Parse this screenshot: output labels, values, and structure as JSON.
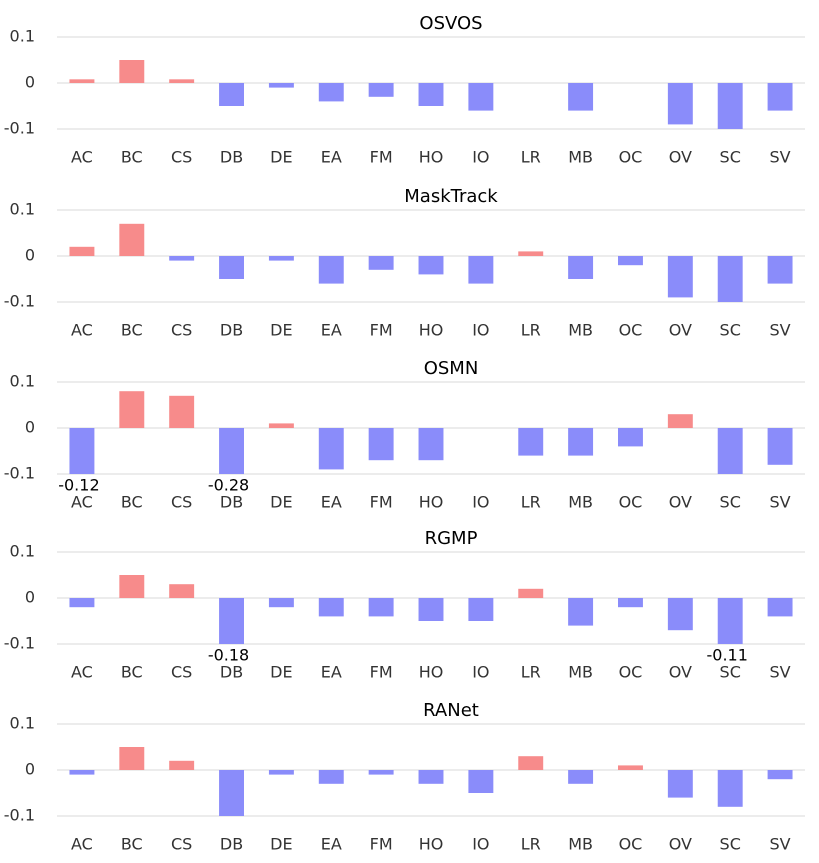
{
  "chart_data": [
    {
      "type": "bar",
      "title": "OSVOS",
      "categories": [
        "AC",
        "BC",
        "CS",
        "DB",
        "DE",
        "EA",
        "FM",
        "HO",
        "IO",
        "LR",
        "MB",
        "OC",
        "OV",
        "SC",
        "SV"
      ],
      "values": [
        0.008,
        0.05,
        0.008,
        -0.05,
        -0.01,
        -0.04,
        -0.03,
        -0.05,
        -0.06,
        0,
        -0.06,
        0,
        -0.09,
        -0.1,
        -0.06
      ],
      "positive_color": "#f78b8b",
      "negative_color": "#8a8cfa",
      "ylim": [
        -0.1,
        0.1
      ],
      "yticks": [
        -0.1,
        0,
        0.1
      ],
      "grid": true
    },
    {
      "type": "bar",
      "title": "MaskTrack",
      "categories": [
        "AC",
        "BC",
        "CS",
        "DB",
        "DE",
        "EA",
        "FM",
        "HO",
        "IO",
        "LR",
        "MB",
        "OC",
        "OV",
        "SC",
        "SV"
      ],
      "values": [
        0.02,
        0.07,
        -0.01,
        -0.05,
        -0.01,
        -0.06,
        -0.03,
        -0.04,
        -0.06,
        0.01,
        -0.05,
        -0.02,
        -0.09,
        -0.1,
        -0.06
      ],
      "positive_color": "#f78b8b",
      "negative_color": "#8a8cfa",
      "ylim": [
        -0.1,
        0.1
      ],
      "yticks": [
        -0.1,
        0,
        0.1
      ],
      "grid": true
    },
    {
      "type": "bar",
      "title": "OSMN",
      "categories": [
        "AC",
        "BC",
        "CS",
        "DB",
        "DE",
        "EA",
        "FM",
        "HO",
        "IO",
        "LR",
        "MB",
        "OC",
        "OV",
        "SC",
        "SV"
      ],
      "values": [
        -0.12,
        0.08,
        0.07,
        -0.28,
        0.01,
        -0.09,
        -0.07,
        -0.07,
        0,
        -0.06,
        -0.06,
        -0.04,
        0.03,
        -0.1,
        -0.08
      ],
      "value_labels": [
        "-0.12",
        null,
        null,
        "-0.28",
        null,
        null,
        null,
        null,
        null,
        null,
        null,
        null,
        null,
        null,
        null
      ],
      "positive_color": "#f78b8b",
      "negative_color": "#8a8cfa",
      "ylim": [
        -0.1,
        0.1
      ],
      "yticks": [
        -0.1,
        0,
        0.1
      ],
      "grid": true
    },
    {
      "type": "bar",
      "title": "RGMP",
      "categories": [
        "AC",
        "BC",
        "CS",
        "DB",
        "DE",
        "EA",
        "FM",
        "HO",
        "IO",
        "LR",
        "MB",
        "OC",
        "OV",
        "SC",
        "SV"
      ],
      "values": [
        -0.02,
        0.05,
        0.03,
        -0.18,
        -0.02,
        -0.04,
        -0.04,
        -0.05,
        -0.05,
        0.02,
        -0.06,
        -0.02,
        -0.07,
        -0.11,
        -0.04
      ],
      "value_labels": [
        null,
        null,
        null,
        "-0.18",
        null,
        null,
        null,
        null,
        null,
        null,
        null,
        null,
        null,
        "-0.11",
        null
      ],
      "positive_color": "#f78b8b",
      "negative_color": "#8a8cfa",
      "ylim": [
        -0.1,
        0.1
      ],
      "yticks": [
        -0.1,
        0,
        0.1
      ],
      "grid": true
    },
    {
      "type": "bar",
      "title": "RANet",
      "categories": [
        "AC",
        "BC",
        "CS",
        "DB",
        "DE",
        "EA",
        "FM",
        "HO",
        "IO",
        "LR",
        "MB",
        "OC",
        "OV",
        "SC",
        "SV"
      ],
      "values": [
        -0.01,
        0.05,
        0.02,
        -0.1,
        -0.01,
        -0.03,
        -0.01,
        -0.03,
        -0.05,
        0.03,
        -0.03,
        0.01,
        -0.06,
        -0.08,
        -0.02
      ],
      "positive_color": "#f78b8b",
      "negative_color": "#8a8cfa",
      "ylim": [
        -0.1,
        0.1
      ],
      "yticks": [
        -0.1,
        0,
        0.1
      ],
      "grid": true
    }
  ]
}
